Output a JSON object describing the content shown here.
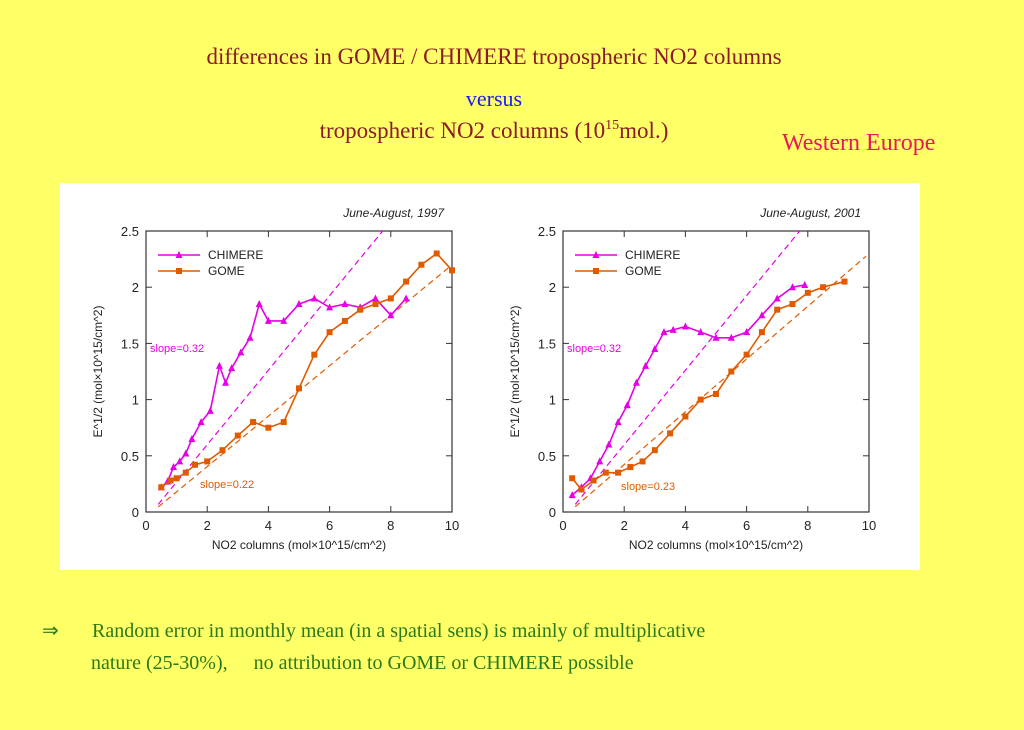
{
  "slide": {
    "title_line1": "differences  in  GOME / CHIMERE tropospheric NO2 columns",
    "title_line2": "versus",
    "title_line3_prefix": "tropospheric NO2 columns (10",
    "title_line3_sup": "15",
    "title_line3_suffix": "mol.)",
    "region": "Western Europe",
    "note_arrow": "⇒",
    "note_line1": "Random error in monthly mean (in a spatial sens) is mainly of multiplicative",
    "note_line2a": "nature (25-30%),",
    "note_line2b": "no attribution to GOME or CHIMERE possible"
  },
  "colors": {
    "background": "#ffff66",
    "title": "#8b1a2b",
    "versus": "#1a1aff",
    "region": "#e8195a",
    "note": "#2a7a1a",
    "chimere": "#e600e6",
    "gome": "#e05a00"
  },
  "chart_data": [
    {
      "type": "line",
      "title": "June-August, 1997",
      "xlabel": "NO2 columns (mol×10^15/cm^2)",
      "ylabel": "E^1/2 (mol×10^15/cm^2)",
      "xlim": [
        0,
        10
      ],
      "ylim": [
        0,
        2.5
      ],
      "xticks": [
        0,
        2,
        4,
        6,
        8,
        10
      ],
      "yticks": [
        0,
        0.5,
        1,
        1.5,
        2,
        2.5
      ],
      "legend": "top-left",
      "series": [
        {
          "name": "CHIMERE",
          "marker": "triangle",
          "x": [
            0.5,
            0.7,
            0.9,
            1.1,
            1.3,
            1.5,
            1.8,
            2.1,
            2.4,
            2.6,
            2.8,
            3.1,
            3.4,
            3.7,
            4.0,
            4.5,
            5.0,
            5.5,
            6.0,
            6.5,
            7.0,
            7.5,
            8.0,
            8.5
          ],
          "y": [
            0.22,
            0.27,
            0.4,
            0.45,
            0.52,
            0.65,
            0.8,
            0.9,
            1.3,
            1.15,
            1.28,
            1.42,
            1.55,
            1.85,
            1.7,
            1.7,
            1.85,
            1.9,
            1.82,
            1.85,
            1.82,
            1.9,
            1.75,
            1.9
          ]
        },
        {
          "name": "GOME",
          "marker": "square",
          "x": [
            0.5,
            0.8,
            1.0,
            1.3,
            1.6,
            2.0,
            2.5,
            3.0,
            3.5,
            4.0,
            4.5,
            5.0,
            5.5,
            6.0,
            6.5,
            7.0,
            7.5,
            8.0,
            8.5,
            9.0,
            9.5,
            10.0
          ],
          "y": [
            0.22,
            0.28,
            0.3,
            0.35,
            0.42,
            0.45,
            0.55,
            0.68,
            0.8,
            0.75,
            0.8,
            1.1,
            1.4,
            1.6,
            1.7,
            1.8,
            1.85,
            1.9,
            2.05,
            2.2,
            2.3,
            2.15
          ]
        }
      ],
      "annotations": [
        "slope=0.32",
        "slope=0.22"
      ],
      "fit_lines": [
        {
          "series": "CHIMERE",
          "slope": 0.32
        },
        {
          "series": "GOME",
          "slope": 0.22
        }
      ]
    },
    {
      "type": "line",
      "title": "June-August, 2001",
      "xlabel": "NO2 columns (mol×10^15/cm^2)",
      "ylabel": "E^1/2 (mol×10^15/cm^2)",
      "xlim": [
        0,
        10
      ],
      "ylim": [
        0,
        2.5
      ],
      "xticks": [
        0,
        2,
        4,
        6,
        8,
        10
      ],
      "yticks": [
        0,
        0.5,
        1,
        1.5,
        2,
        2.5
      ],
      "legend": "top-left",
      "series": [
        {
          "name": "CHIMERE",
          "marker": "triangle",
          "x": [
            0.3,
            0.6,
            0.9,
            1.2,
            1.5,
            1.8,
            2.1,
            2.4,
            2.7,
            3.0,
            3.3,
            3.6,
            4.0,
            4.5,
            5.0,
            5.5,
            6.0,
            6.5,
            7.0,
            7.5,
            7.9
          ],
          "y": [
            0.15,
            0.22,
            0.3,
            0.45,
            0.6,
            0.8,
            0.95,
            1.15,
            1.3,
            1.45,
            1.6,
            1.62,
            1.65,
            1.6,
            1.55,
            1.55,
            1.6,
            1.75,
            1.9,
            2.0,
            2.02
          ]
        },
        {
          "name": "GOME",
          "marker": "square",
          "x": [
            0.3,
            0.6,
            1.0,
            1.4,
            1.8,
            2.2,
            2.6,
            3.0,
            3.5,
            4.0,
            4.5,
            5.0,
            5.5,
            6.0,
            6.5,
            7.0,
            7.5,
            8.0,
            8.5,
            9.2
          ],
          "y": [
            0.3,
            0.2,
            0.28,
            0.35,
            0.35,
            0.4,
            0.45,
            0.55,
            0.7,
            0.85,
            1.0,
            1.05,
            1.25,
            1.4,
            1.6,
            1.8,
            1.85,
            1.95,
            2.0,
            2.05
          ]
        }
      ],
      "annotations": [
        "slope=0.32",
        "slope=0.23"
      ],
      "fit_lines": [
        {
          "series": "CHIMERE",
          "slope": 0.32
        },
        {
          "series": "GOME",
          "slope": 0.23
        }
      ]
    }
  ]
}
